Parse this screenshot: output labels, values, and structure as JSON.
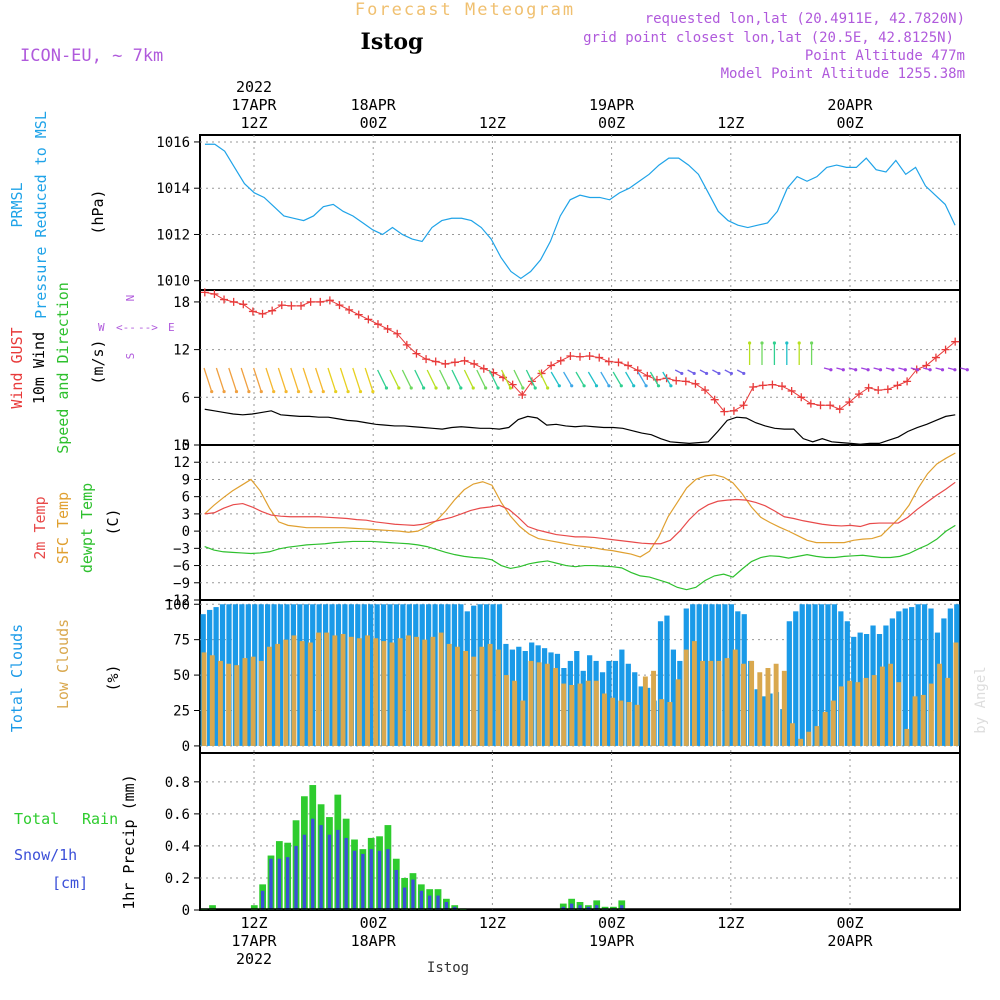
{
  "header": {
    "product": "Forecast Meteogram",
    "station": "Istog",
    "model": "ICON-EU, ~ 7km",
    "requested": "requested lon,lat (20.4911E, 42.7820N)",
    "grid": "grid point closest lon,lat (20.5E, 42.8125N)",
    "point_alt": "Point Altitude 477m",
    "model_alt": "Model Point Altitude 1255.38m",
    "footer": "Istog",
    "watermark": "by Angel"
  },
  "colors": {
    "pressure": "#1fa3e8",
    "gust": "#e83a3a",
    "wind": "#000000",
    "t2m": "#e84a4a",
    "sfc": "#e0a030",
    "dew": "#2ec02e",
    "total_cloud": "#1a9ae8",
    "low_cloud": "#d9a84e",
    "rain": "#2ecc2e",
    "snow": "#3b4fd8",
    "header_purple": "#b05adc",
    "header_orange": "#f0c070"
  },
  "time_axis": {
    "top_labels": [
      {
        "t": 0,
        "lines": [
          "2022",
          "17APR",
          "12Z"
        ]
      },
      {
        "t": 12,
        "lines": [
          "18APR",
          "00Z"
        ]
      },
      {
        "t": 24,
        "lines": [
          "12Z"
        ]
      },
      {
        "t": 36,
        "lines": [
          "19APR",
          "00Z"
        ]
      },
      {
        "t": 48,
        "lines": [
          "12Z"
        ]
      },
      {
        "t": 60,
        "lines": [
          "20APR",
          "00Z"
        ]
      }
    ],
    "bottom_labels": [
      {
        "t": 0,
        "lines": [
          "12Z",
          "17APR",
          "2022"
        ]
      },
      {
        "t": 12,
        "lines": [
          "00Z",
          "18APR"
        ]
      },
      {
        "t": 24,
        "lines": [
          "12Z"
        ]
      },
      {
        "t": 36,
        "lines": [
          "00Z",
          "19APR"
        ]
      },
      {
        "t": 48,
        "lines": [
          "12Z"
        ]
      },
      {
        "t": 60,
        "lines": [
          "00Z",
          "20APR"
        ]
      }
    ]
  },
  "chart_data": [
    {
      "type": "line",
      "name": "pressure",
      "ylabels": [
        "PRMSL",
        "Pressure Reduced to MSL"
      ],
      "units": "(hPa)",
      "ylim": [
        1009.6,
        1016.3
      ],
      "yticks": [
        1010,
        1012,
        1014,
        1016
      ],
      "series": [
        {
          "name": "PRMSL",
          "values": [
            1015.9,
            1015.9,
            1015.6,
            1014.9,
            1014.2,
            1013.8,
            1013.6,
            1013.2,
            1012.8,
            1012.7,
            1012.6,
            1012.8,
            1013.2,
            1013.3,
            1013.0,
            1012.8,
            1012.5,
            1012.2,
            1012.0,
            1012.3,
            1012.0,
            1011.8,
            1011.7,
            1012.3,
            1012.6,
            1012.7,
            1012.7,
            1012.6,
            1012.3,
            1011.8,
            1011.0,
            1010.4,
            1010.1,
            1010.4,
            1010.9,
            1011.7,
            1012.8,
            1013.5,
            1013.7,
            1013.6,
            1013.6,
            1013.5,
            1013.8,
            1014.0,
            1014.3,
            1014.6,
            1015.0,
            1015.3,
            1015.3,
            1015.0,
            1014.6,
            1013.8,
            1013.0,
            1012.6,
            1012.4,
            1012.3,
            1012.4,
            1012.5,
            1013.0,
            1014.0,
            1014.5,
            1014.3,
            1014.5,
            1014.9,
            1015.0,
            1014.9,
            1014.9,
            1015.3,
            1014.8,
            1014.7,
            1015.2,
            1014.6,
            1014.9,
            1014.1,
            1013.7,
            1013.3,
            1012.4
          ]
        }
      ]
    },
    {
      "type": "line",
      "name": "wind",
      "ylabels": [
        "Wind GUST",
        "10m Wind",
        "Speed and Direction"
      ],
      "units": "(m/s)",
      "compass": [
        "N",
        "S",
        "W",
        "E",
        "<--",
        "-->"
      ],
      "ylim": [
        0,
        19.5
      ],
      "yticks": [
        0,
        6,
        12,
        18
      ],
      "series": [
        {
          "name": "Wind GUST",
          "values": [
            19.2,
            19.0,
            18.3,
            18.0,
            17.7,
            16.8,
            16.5,
            16.9,
            17.6,
            17.5,
            17.5,
            18.0,
            18.0,
            18.2,
            17.6,
            17.0,
            16.4,
            15.8,
            15.2,
            14.6,
            14.0,
            12.6,
            11.5,
            10.8,
            10.5,
            10.2,
            10.4,
            10.6,
            10.2,
            9.6,
            9.1,
            8.5,
            7.6,
            6.3,
            8.0,
            9.0,
            10.0,
            10.6,
            11.2,
            11.1,
            11.2,
            11.0,
            10.5,
            10.4,
            10.0,
            9.4,
            8.7,
            8.2,
            8.4,
            8.1,
            8.0,
            7.7,
            6.9,
            5.7,
            4.2,
            4.3,
            5.0,
            7.3,
            7.5,
            7.6,
            7.4,
            6.8,
            6.0,
            5.2,
            5.0,
            5.0,
            4.5,
            5.4,
            6.4,
            7.2,
            6.9,
            7.0,
            7.5,
            8.0,
            9.5,
            10.0,
            11.0,
            12.0,
            13.0
          ]
        },
        {
          "name": "10m Wind",
          "values": [
            4.5,
            4.3,
            4.1,
            3.9,
            3.8,
            3.9,
            4.1,
            4.3,
            3.8,
            3.7,
            3.6,
            3.6,
            3.5,
            3.5,
            3.3,
            3.1,
            3.0,
            2.8,
            2.6,
            2.5,
            2.4,
            2.4,
            2.3,
            2.2,
            2.1,
            2.0,
            2.2,
            2.3,
            2.2,
            2.1,
            2.1,
            2.0,
            2.2,
            3.2,
            3.6,
            3.4,
            2.5,
            2.6,
            2.4,
            2.3,
            2.4,
            2.3,
            2.2,
            2.2,
            2.1,
            1.8,
            1.5,
            1.3,
            0.8,
            0.4,
            0.3,
            0.2,
            0.3,
            0.4,
            1.7,
            3.1,
            3.5,
            3.4,
            2.8,
            2.4,
            2.1,
            2.0,
            2.0,
            0.8,
            0.4,
            0.8,
            0.4,
            0.3,
            0.2,
            0.1,
            0.2,
            0.2,
            0.6,
            1.0,
            1.7,
            2.2,
            2.6,
            3.1,
            3.6,
            3.8
          ]
        }
      ]
    },
    {
      "type": "line",
      "name": "temperature",
      "ylabels": [
        "2m Temp",
        "SFC Temp",
        "dewpt Temp"
      ],
      "units": "(C)",
      "ylim": [
        -12,
        15
      ],
      "yticks": [
        -12,
        -9,
        -6,
        -3,
        0,
        3,
        6,
        9,
        12,
        15
      ],
      "series": [
        {
          "name": "2m Temp",
          "values": [
            3.0,
            3.2,
            4.0,
            4.6,
            4.8,
            4.2,
            3.4,
            2.8,
            2.6,
            2.5,
            2.5,
            2.5,
            2.5,
            2.4,
            2.3,
            2.2,
            2.0,
            1.9,
            1.6,
            1.4,
            1.2,
            1.1,
            1.0,
            1.2,
            1.6,
            2.0,
            2.4,
            3.0,
            3.6,
            4.0,
            4.2,
            4.5,
            3.8,
            2.4,
            0.8,
            0.2,
            -0.2,
            -0.6,
            -0.8,
            -1.0,
            -1.0,
            -1.1,
            -1.3,
            -1.5,
            -1.7,
            -1.9,
            -2.1,
            -2.2,
            -2.2,
            -1.6,
            0.0,
            2.0,
            3.6,
            4.6,
            5.2,
            5.4,
            5.5,
            5.4,
            5.0,
            4.4,
            3.5,
            2.5,
            2.2,
            1.8,
            1.5,
            1.2,
            1.0,
            0.9,
            1.0,
            0.8,
            1.3,
            1.4,
            1.4,
            1.4,
            2.4,
            3.8,
            5.0,
            6.2,
            7.3,
            8.5
          ]
        },
        {
          "name": "SFC Temp",
          "values": [
            3.0,
            4.5,
            5.8,
            7.0,
            8.0,
            9.0,
            7.0,
            4.0,
            1.6,
            1.0,
            0.8,
            0.6,
            0.6,
            0.6,
            0.6,
            0.6,
            0.5,
            0.4,
            0.3,
            0.2,
            0.1,
            0.0,
            -0.2,
            0.0,
            0.8,
            1.8,
            3.5,
            5.5,
            7.2,
            8.2,
            8.6,
            8.0,
            5.0,
            2.6,
            0.8,
            -0.5,
            -1.3,
            -1.6,
            -1.9,
            -2.2,
            -2.5,
            -2.7,
            -2.9,
            -3.2,
            -3.4,
            -3.7,
            -4.0,
            -4.5,
            -3.5,
            -1.0,
            2.5,
            5.0,
            7.5,
            9.0,
            9.6,
            9.8,
            9.4,
            8.4,
            6.5,
            4.2,
            2.4,
            1.5,
            0.7,
            0.0,
            -0.8,
            -1.6,
            -2.0,
            -2.0,
            -2.0,
            -2.0,
            -1.6,
            -1.4,
            -1.3,
            -0.8,
            0.8,
            2.4,
            4.5,
            7.5,
            10.0,
            11.7,
            12.7,
            13.6
          ]
        },
        {
          "name": "dewpt Temp",
          "values": [
            -2.7,
            -3.3,
            -3.6,
            -3.7,
            -3.8,
            -3.9,
            -3.8,
            -3.6,
            -3.1,
            -2.8,
            -2.6,
            -2.4,
            -2.3,
            -2.2,
            -2.0,
            -1.9,
            -1.8,
            -1.8,
            -1.8,
            -1.9,
            -2.0,
            -2.1,
            -2.2,
            -2.4,
            -2.7,
            -3.2,
            -3.7,
            -4.1,
            -4.4,
            -4.6,
            -4.7,
            -5.0,
            -6.0,
            -6.5,
            -6.2,
            -5.7,
            -5.4,
            -5.2,
            -5.6,
            -6.0,
            -6.2,
            -6.0,
            -6.0,
            -6.1,
            -6.2,
            -6.4,
            -7.2,
            -7.8,
            -8.0,
            -8.5,
            -9.0,
            -9.8,
            -10.2,
            -9.8,
            -8.6,
            -7.8,
            -7.5,
            -8.0,
            -6.6,
            -5.3,
            -4.6,
            -4.3,
            -4.4,
            -4.7,
            -4.4,
            -4.1,
            -4.4,
            -4.6,
            -4.6,
            -4.4,
            -4.3,
            -4.2,
            -4.4,
            -4.6,
            -4.6,
            -4.4,
            -3.9,
            -3.1,
            -2.4,
            -1.4,
            0.0,
            1.0
          ]
        }
      ]
    },
    {
      "type": "bar",
      "name": "clouds",
      "ylabels": [
        "Total Clouds",
        "Low Clouds"
      ],
      "units": "(%)",
      "ylim": [
        -5,
        103
      ],
      "yticks": [
        0,
        25,
        50,
        75,
        100
      ],
      "series": [
        {
          "name": "Total Clouds",
          "values": [
            93,
            96,
            98,
            100,
            100,
            100,
            100,
            100,
            100,
            100,
            100,
            100,
            100,
            100,
            100,
            100,
            100,
            100,
            100,
            100,
            100,
            100,
            100,
            100,
            100,
            100,
            100,
            100,
            100,
            100,
            100,
            100,
            100,
            100,
            100,
            100,
            100,
            100,
            100,
            100,
            100,
            95,
            99,
            100,
            100,
            100,
            100,
            72,
            68,
            70,
            67,
            73,
            71,
            69,
            66,
            65,
            55,
            60,
            67,
            53,
            64,
            60,
            52,
            60,
            60,
            68,
            58,
            52,
            42,
            41,
            32,
            88,
            92,
            68,
            60,
            97,
            100,
            100,
            100,
            100,
            100,
            100,
            100,
            95,
            93,
            60,
            40,
            35,
            37,
            38,
            26,
            88,
            95,
            100,
            100,
            100,
            100,
            100,
            100,
            95,
            88,
            77,
            80,
            79,
            85,
            79,
            85,
            90,
            95,
            97,
            98,
            100,
            100,
            97,
            80,
            90,
            97,
            100
          ]
        },
        {
          "name": "Low Clouds",
          "values": [
            66,
            64,
            60,
            58,
            57,
            62,
            63,
            60,
            70,
            72,
            75,
            78,
            74,
            73,
            80,
            80,
            78,
            79,
            77,
            76,
            78,
            76,
            74,
            73,
            76,
            78,
            77,
            75,
            77,
            80,
            72,
            70,
            67,
            63,
            70,
            72,
            68,
            50,
            46,
            32,
            60,
            59,
            58,
            55,
            44,
            43,
            44,
            46,
            46,
            37,
            34,
            32,
            31,
            29,
            49,
            53,
            33,
            31,
            47,
            68,
            74,
            60,
            60,
            60,
            62,
            68,
            58,
            60,
            52,
            55,
            58,
            53,
            16,
            5,
            10,
            14,
            24,
            32,
            42,
            46,
            45,
            48,
            50,
            56,
            58,
            45,
            12,
            35,
            36,
            44,
            58,
            48,
            73
          ]
        }
      ]
    },
    {
      "type": "bar",
      "name": "precip",
      "ylabels": [
        "Total Rain",
        "Snow/1h",
        "[cm]"
      ],
      "ylabel": "1hr Precip (mm)",
      "ylim": [
        0,
        0.98
      ],
      "yticks": [
        0,
        0.2,
        0.4,
        0.6,
        0.8
      ],
      "ytick_labels": [
        "0",
        "0.2",
        "0.4",
        "0.6",
        "0.8"
      ],
      "series": [
        {
          "name": "Total Rain",
          "values": [
            0.01,
            0.03,
            0,
            0,
            0,
            0,
            0.03,
            0.16,
            0.34,
            0.43,
            0.42,
            0.56,
            0.71,
            0.78,
            0.66,
            0.58,
            0.72,
            0.57,
            0.44,
            0.38,
            0.45,
            0.46,
            0.53,
            0.32,
            0.2,
            0.23,
            0.16,
            0.13,
            0.13,
            0.07,
            0.03,
            0.01,
            0,
            0,
            0,
            0,
            0,
            0,
            0,
            0,
            0,
            0,
            0,
            0.04,
            0.07,
            0.05,
            0.03,
            0.06,
            0.02,
            0.02,
            0.06,
            0,
            0,
            0,
            0,
            0,
            0,
            0,
            0,
            0,
            0,
            0,
            0,
            0,
            0,
            0,
            0,
            0,
            0,
            0,
            0,
            0,
            0,
            0,
            0,
            0,
            0,
            0,
            0,
            0,
            0,
            0,
            0,
            0,
            0,
            0,
            0,
            0,
            0,
            0,
            0
          ]
        },
        {
          "name": "Snow/1h",
          "values": [
            0,
            0,
            0,
            0,
            0,
            0,
            0,
            0.12,
            0.32,
            0.32,
            0.33,
            0.4,
            0.47,
            0.57,
            0.53,
            0.47,
            0.5,
            0.45,
            0.37,
            0.35,
            0.38,
            0.37,
            0.38,
            0.25,
            0.14,
            0.19,
            0.12,
            0.09,
            0.09,
            0.05,
            0.02,
            0,
            0,
            0,
            0,
            0,
            0,
            0,
            0,
            0,
            0,
            0,
            0,
            0.02,
            0.04,
            0.03,
            0.02,
            0.03,
            0.01,
            0.01,
            0.03,
            0,
            0,
            0,
            0,
            0,
            0,
            0,
            0,
            0,
            0,
            0,
            0,
            0,
            0,
            0,
            0,
            0,
            0,
            0,
            0,
            0,
            0,
            0,
            0,
            0,
            0,
            0,
            0,
            0,
            0,
            0,
            0,
            0,
            0,
            0,
            0,
            0,
            0,
            0,
            0
          ]
        }
      ]
    }
  ]
}
